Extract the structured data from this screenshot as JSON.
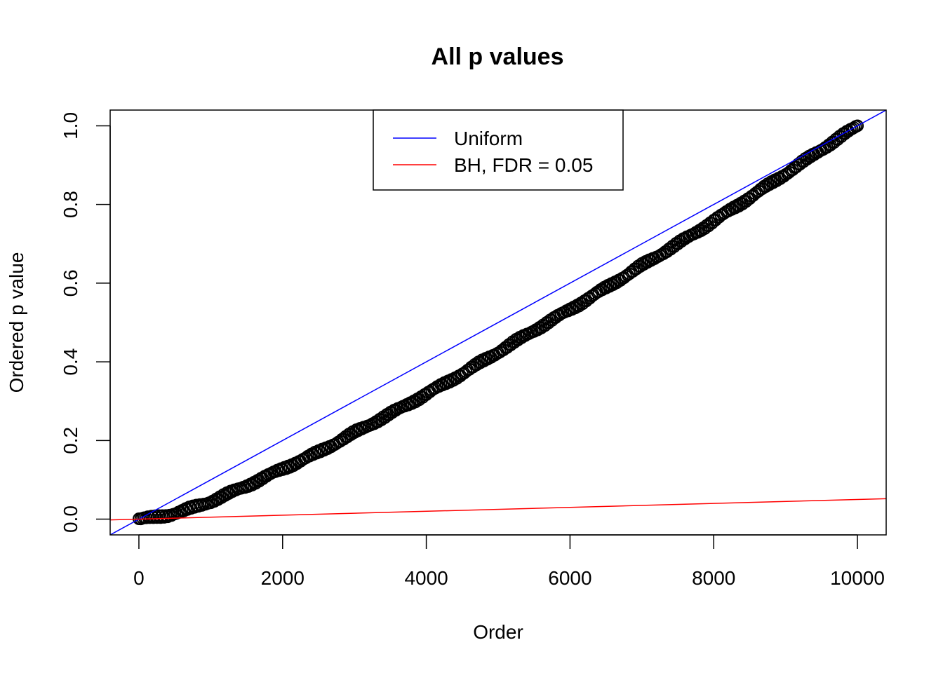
{
  "chart_data": {
    "type": "scatter",
    "title": "All p values",
    "xlabel": "Order",
    "ylabel": "Ordered p value",
    "xlim": [
      -400,
      10400
    ],
    "ylim": [
      -0.04,
      1.04
    ],
    "x_ticks": [
      0,
      2000,
      4000,
      6000,
      8000,
      10000
    ],
    "x_tick_labels": [
      "0",
      "2000",
      "4000",
      "6000",
      "8000",
      "10000"
    ],
    "y_ticks": [
      0.0,
      0.2,
      0.4,
      0.6,
      0.8,
      1.0
    ],
    "y_tick_labels": [
      "0.0",
      "0.2",
      "0.4",
      "0.6",
      "0.8",
      "1.0"
    ],
    "grid": false,
    "legend_position": "top",
    "points": {
      "name": "Ordered p values",
      "color": "#000000",
      "n": 10000,
      "x": [
        1,
        200,
        400,
        600,
        800,
        1000,
        1500,
        2000,
        2500,
        3000,
        3500,
        4000,
        4500,
        5000,
        5500,
        6000,
        6500,
        7000,
        7500,
        8000,
        8500,
        9000,
        9500,
        10000
      ],
      "y": [
        0.0,
        0.004,
        0.01,
        0.02,
        0.032,
        0.045,
        0.085,
        0.128,
        0.17,
        0.22,
        0.268,
        0.318,
        0.37,
        0.425,
        0.48,
        0.533,
        0.588,
        0.645,
        0.7,
        0.758,
        0.818,
        0.878,
        0.94,
        1.0
      ]
    },
    "lines": [
      {
        "name": "Uniform",
        "color": "#0000ff",
        "intercept": 0.0,
        "slope": 0.0001
      },
      {
        "name": "BH, FDR = 0.05",
        "color": "#ff0000",
        "intercept": 0.0,
        "slope": 5e-06
      }
    ]
  }
}
